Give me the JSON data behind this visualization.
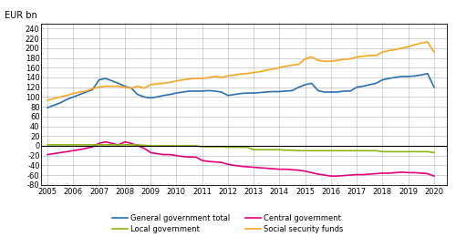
{
  "ylabel": "EUR bn",
  "ylim": [
    -80,
    250
  ],
  "yticks": [
    -80,
    -60,
    -40,
    -20,
    0,
    20,
    40,
    60,
    80,
    100,
    120,
    140,
    160,
    180,
    200,
    220,
    240
  ],
  "xlim": [
    2004.75,
    2020.5
  ],
  "xticks": [
    2005,
    2006,
    2007,
    2008,
    2009,
    2010,
    2011,
    2012,
    2013,
    2014,
    2015,
    2016,
    2017,
    2018,
    2019,
    2020
  ],
  "general_govt_total": {
    "color": "#2b6faf",
    "label": "General government total",
    "x": [
      2005.0,
      2005.25,
      2005.5,
      2005.75,
      2006.0,
      2006.25,
      2006.5,
      2006.75,
      2007.0,
      2007.25,
      2007.5,
      2007.75,
      2008.0,
      2008.25,
      2008.5,
      2008.75,
      2009.0,
      2009.25,
      2009.5,
      2009.75,
      2010.0,
      2010.25,
      2010.5,
      2010.75,
      2011.0,
      2011.25,
      2011.5,
      2011.75,
      2012.0,
      2012.25,
      2012.5,
      2012.75,
      2013.0,
      2013.25,
      2013.5,
      2013.75,
      2014.0,
      2014.25,
      2014.5,
      2014.75,
      2015.0,
      2015.25,
      2015.5,
      2015.75,
      2016.0,
      2016.25,
      2016.5,
      2016.75,
      2017.0,
      2017.25,
      2017.5,
      2017.75,
      2018.0,
      2018.25,
      2018.5,
      2018.75,
      2019.0,
      2019.25,
      2019.5,
      2019.75,
      2020.0
    ],
    "y": [
      78,
      83,
      88,
      95,
      100,
      105,
      110,
      115,
      135,
      138,
      133,
      128,
      122,
      118,
      105,
      100,
      98,
      100,
      103,
      105,
      108,
      110,
      112,
      112,
      112,
      113,
      112,
      110,
      103,
      105,
      107,
      108,
      108,
      109,
      110,
      111,
      111,
      112,
      113,
      120,
      125,
      128,
      113,
      110,
      110,
      110,
      112,
      112,
      120,
      122,
      125,
      128,
      135,
      138,
      140,
      142,
      142,
      143,
      145,
      148,
      120
    ]
  },
  "central_govt": {
    "color": "#e5007d",
    "label": "Central government",
    "x": [
      2005.0,
      2005.25,
      2005.5,
      2005.75,
      2006.0,
      2006.25,
      2006.5,
      2006.75,
      2007.0,
      2007.25,
      2007.5,
      2007.75,
      2008.0,
      2008.25,
      2008.5,
      2008.75,
      2009.0,
      2009.25,
      2009.5,
      2009.75,
      2010.0,
      2010.25,
      2010.5,
      2010.75,
      2011.0,
      2011.25,
      2011.5,
      2011.75,
      2012.0,
      2012.25,
      2012.5,
      2012.75,
      2013.0,
      2013.25,
      2013.5,
      2013.75,
      2014.0,
      2014.25,
      2014.5,
      2014.75,
      2015.0,
      2015.25,
      2015.5,
      2015.75,
      2016.0,
      2016.25,
      2016.5,
      2016.75,
      2017.0,
      2017.25,
      2017.5,
      2017.75,
      2018.0,
      2018.25,
      2018.5,
      2018.75,
      2019.0,
      2019.25,
      2019.5,
      2019.75,
      2020.0
    ],
    "y": [
      -18,
      -16,
      -14,
      -12,
      -10,
      -8,
      -5,
      -2,
      5,
      8,
      5,
      2,
      8,
      5,
      0,
      -5,
      -14,
      -16,
      -18,
      -18,
      -20,
      -22,
      -23,
      -23,
      -30,
      -32,
      -33,
      -34,
      -38,
      -40,
      -42,
      -43,
      -44,
      -45,
      -46,
      -47,
      -48,
      -48,
      -49,
      -50,
      -52,
      -55,
      -58,
      -60,
      -62,
      -62,
      -61,
      -60,
      -59,
      -59,
      -58,
      -57,
      -56,
      -56,
      -55,
      -54,
      -55,
      -55,
      -56,
      -57,
      -62
    ]
  },
  "local_govt": {
    "color": "#8db614",
    "label": "Local government",
    "x": [
      2005.0,
      2005.25,
      2005.5,
      2005.75,
      2006.0,
      2006.25,
      2006.5,
      2006.75,
      2007.0,
      2007.25,
      2007.5,
      2007.75,
      2008.0,
      2008.25,
      2008.5,
      2008.75,
      2009.0,
      2009.25,
      2009.5,
      2009.75,
      2010.0,
      2010.25,
      2010.5,
      2010.75,
      2011.0,
      2011.25,
      2011.5,
      2011.75,
      2012.0,
      2012.25,
      2012.5,
      2012.75,
      2013.0,
      2013.25,
      2013.5,
      2013.75,
      2014.0,
      2014.25,
      2014.5,
      2014.75,
      2015.0,
      2015.25,
      2015.5,
      2015.75,
      2016.0,
      2016.25,
      2016.5,
      2016.75,
      2017.0,
      2017.25,
      2017.5,
      2017.75,
      2018.0,
      2018.25,
      2018.5,
      2018.75,
      2019.0,
      2019.25,
      2019.5,
      2019.75,
      2020.0
    ],
    "y": [
      2,
      2,
      2,
      2,
      2,
      2,
      2,
      2,
      2,
      2,
      2,
      2,
      2,
      2,
      2,
      1,
      0,
      0,
      0,
      0,
      0,
      0,
      0,
      0,
      -2,
      -2,
      -2,
      -2,
      -3,
      -3,
      -3,
      -3,
      -8,
      -8,
      -8,
      -8,
      -8,
      -9,
      -9,
      -10,
      -10,
      -10,
      -10,
      -10,
      -10,
      -10,
      -10,
      -10,
      -10,
      -10,
      -10,
      -10,
      -12,
      -12,
      -12,
      -12,
      -12,
      -12,
      -12,
      -12,
      -14
    ]
  },
  "social_security": {
    "color": "#f5a623",
    "label": "Social security funds",
    "x": [
      2005.0,
      2005.25,
      2005.5,
      2005.75,
      2006.0,
      2006.25,
      2006.5,
      2006.75,
      2007.0,
      2007.25,
      2007.5,
      2007.75,
      2008.0,
      2008.25,
      2008.5,
      2008.75,
      2009.0,
      2009.25,
      2009.5,
      2009.75,
      2010.0,
      2010.25,
      2010.5,
      2010.75,
      2011.0,
      2011.25,
      2011.5,
      2011.75,
      2012.0,
      2012.25,
      2012.5,
      2012.75,
      2013.0,
      2013.25,
      2013.5,
      2013.75,
      2014.0,
      2014.25,
      2014.5,
      2014.75,
      2015.0,
      2015.25,
      2015.5,
      2015.75,
      2016.0,
      2016.25,
      2016.5,
      2016.75,
      2017.0,
      2017.25,
      2017.5,
      2017.75,
      2018.0,
      2018.25,
      2018.5,
      2018.75,
      2019.0,
      2019.25,
      2019.5,
      2019.75,
      2020.0
    ],
    "y": [
      93,
      97,
      100,
      103,
      107,
      110,
      112,
      117,
      120,
      122,
      122,
      122,
      120,
      118,
      122,
      118,
      125,
      127,
      128,
      130,
      133,
      135,
      137,
      138,
      138,
      140,
      142,
      140,
      143,
      145,
      147,
      148,
      150,
      152,
      155,
      157,
      160,
      163,
      165,
      167,
      178,
      182,
      175,
      173,
      173,
      175,
      177,
      178,
      182,
      183,
      185,
      185,
      192,
      195,
      197,
      200,
      203,
      207,
      210,
      213,
      192
    ]
  },
  "background_color": "#ffffff",
  "grid_color": "#b0b0b0",
  "zero_line_color": "#000000",
  "line_width": 1.2,
  "figsize": [
    5.0,
    2.6
  ],
  "dpi": 100
}
